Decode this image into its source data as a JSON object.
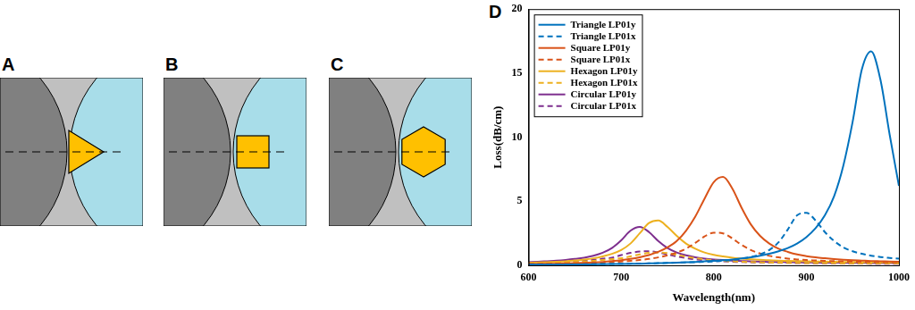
{
  "diagrams": {
    "labels": [
      "A",
      "B",
      "C"
    ]
  },
  "chart_data": {
    "type": "line",
    "panel_label": "D",
    "x_label": "Wavelength(nm)",
    "y_label": "Loss(dB/cm)",
    "xlim": [
      600,
      1000
    ],
    "xticks": [
      600,
      700,
      800,
      900,
      1000
    ],
    "ylim": [
      0,
      20
    ],
    "yticks": [
      0,
      5,
      10,
      15,
      20
    ],
    "grid": false,
    "legend": "upper left",
    "x": [
      600,
      610,
      620,
      630,
      640,
      650,
      660,
      670,
      680,
      690,
      700,
      710,
      720,
      730,
      740,
      750,
      760,
      770,
      780,
      790,
      800,
      810,
      820,
      830,
      840,
      850,
      860,
      870,
      880,
      890,
      900,
      910,
      920,
      930,
      940,
      950,
      960,
      970,
      980,
      990,
      1000
    ],
    "series": [
      {
        "name": "Triangle LP01y",
        "color": "#0072BD",
        "line_style": "solid",
        "values": [
          0.05,
          0.05,
          0.05,
          0.06,
          0.06,
          0.07,
          0.07,
          0.08,
          0.09,
          0.1,
          0.11,
          0.12,
          0.13,
          0.15,
          0.17,
          0.19,
          0.21,
          0.24,
          0.27,
          0.31,
          0.35,
          0.4,
          0.46,
          0.54,
          0.63,
          0.75,
          0.9,
          1.1,
          1.35,
          1.7,
          2.2,
          2.9,
          3.9,
          5.4,
          7.8,
          11.2,
          15.3,
          16.7,
          14.5,
          10.2,
          6.2
        ]
      },
      {
        "name": "Triangle LP01x",
        "color": "#0072BD",
        "line_style": "dashed",
        "values": [
          0.05,
          0.05,
          0.06,
          0.06,
          0.07,
          0.07,
          0.08,
          0.09,
          0.1,
          0.11,
          0.12,
          0.13,
          0.14,
          0.15,
          0.17,
          0.19,
          0.21,
          0.23,
          0.25,
          0.28,
          0.3,
          0.35,
          0.42,
          0.52,
          0.65,
          0.85,
          1.2,
          1.8,
          2.8,
          3.9,
          4.1,
          3.5,
          2.6,
          1.9,
          1.4,
          1.1,
          0.9,
          0.75,
          0.65,
          0.58,
          0.52
        ]
      },
      {
        "name": "Square LP01y",
        "color": "#D95319",
        "line_style": "solid",
        "values": [
          0.1,
          0.11,
          0.12,
          0.13,
          0.15,
          0.17,
          0.2,
          0.23,
          0.27,
          0.33,
          0.4,
          0.5,
          0.63,
          0.8,
          1.05,
          1.4,
          1.9,
          2.7,
          3.8,
          5.2,
          6.5,
          6.9,
          6.0,
          4.5,
          3.2,
          2.3,
          1.7,
          1.3,
          1.05,
          0.85,
          0.72,
          0.62,
          0.55,
          0.49,
          0.44,
          0.4,
          0.37,
          0.34,
          0.32,
          0.3,
          0.28
        ]
      },
      {
        "name": "Square LP01x",
        "color": "#D95319",
        "line_style": "dashed",
        "values": [
          0.1,
          0.1,
          0.11,
          0.12,
          0.13,
          0.14,
          0.16,
          0.18,
          0.21,
          0.25,
          0.3,
          0.35,
          0.42,
          0.5,
          0.62,
          0.78,
          1.0,
          1.3,
          1.75,
          2.25,
          2.55,
          2.5,
          2.1,
          1.6,
          1.2,
          0.92,
          0.74,
          0.62,
          0.53,
          0.46,
          0.41,
          0.38,
          0.35,
          0.33,
          0.31,
          0.29,
          0.28,
          0.27,
          0.26,
          0.25,
          0.25
        ]
      },
      {
        "name": "Hexagon LP01y",
        "color": "#EDB120",
        "line_style": "solid",
        "values": [
          0.2,
          0.22,
          0.25,
          0.28,
          0.32,
          0.38,
          0.45,
          0.55,
          0.7,
          0.9,
          1.2,
          1.7,
          2.5,
          3.3,
          3.5,
          3.0,
          2.3,
          1.7,
          1.3,
          1.0,
          0.82,
          0.7,
          0.6,
          0.53,
          0.47,
          0.43,
          0.4,
          0.37,
          0.35,
          0.33,
          0.31,
          0.3,
          0.29,
          0.28,
          0.27,
          0.26,
          0.25,
          0.24,
          0.23,
          0.23,
          0.22
        ]
      },
      {
        "name": "Hexagon LP01x",
        "color": "#EDB120",
        "line_style": "dashed",
        "values": [
          0.15,
          0.16,
          0.18,
          0.2,
          0.23,
          0.26,
          0.3,
          0.35,
          0.42,
          0.48,
          0.55,
          0.7,
          0.85,
          0.97,
          1.0,
          0.95,
          0.82,
          0.68,
          0.56,
          0.47,
          0.4,
          0.35,
          0.31,
          0.28,
          0.26,
          0.24,
          0.22,
          0.21,
          0.2,
          0.19,
          0.18,
          0.18,
          0.17,
          0.17,
          0.16,
          0.16,
          0.16,
          0.15,
          0.15,
          0.15,
          0.15
        ]
      },
      {
        "name": "Circular LP01y",
        "color": "#7E2F8E",
        "line_style": "solid",
        "values": [
          0.25,
          0.28,
          0.32,
          0.36,
          0.42,
          0.5,
          0.6,
          0.75,
          0.98,
          1.35,
          1.95,
          2.7,
          3.0,
          2.6,
          1.9,
          1.35,
          1.0,
          0.78,
          0.63,
          0.53,
          0.46,
          0.41,
          0.37,
          0.34,
          0.31,
          0.29,
          0.27,
          0.26,
          0.25,
          0.24,
          0.23,
          0.22,
          0.21,
          0.21,
          0.2,
          0.2,
          0.19,
          0.18,
          0.18,
          0.17,
          0.17
        ]
      },
      {
        "name": "Circular LP01x",
        "color": "#7E2F8E",
        "line_style": "dashed",
        "values": [
          0.15,
          0.17,
          0.19,
          0.22,
          0.26,
          0.3,
          0.36,
          0.43,
          0.52,
          0.6,
          0.8,
          0.97,
          1.08,
          1.1,
          1.0,
          0.85,
          0.7,
          0.57,
          0.47,
          0.4,
          0.35,
          0.31,
          0.28,
          0.26,
          0.24,
          0.22,
          0.21,
          0.2,
          0.19,
          0.18,
          0.17,
          0.16,
          0.16,
          0.15,
          0.15,
          0.14,
          0.14,
          0.13,
          0.13,
          0.13,
          0.12
        ]
      }
    ]
  }
}
